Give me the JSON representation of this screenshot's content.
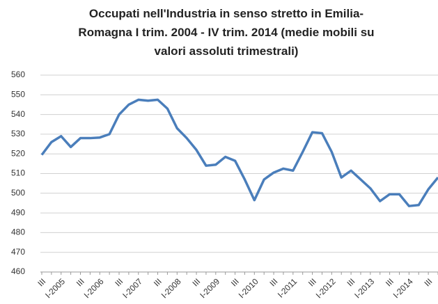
{
  "chart_data": {
    "type": "line",
    "title": "Occupati nell'Industria in senso stretto in Emilia-Romagna I trim. 2004 - IV trim. 2014 (medie mobili su valori assoluti trimestrali)",
    "categories": [
      "III",
      null,
      "I-2005",
      null,
      "III",
      null,
      "I-2006",
      null,
      "III",
      null,
      "I-2007",
      null,
      "III",
      null,
      "I-2008",
      null,
      "III",
      null,
      "I-2009",
      null,
      "III",
      null,
      "I-2010",
      null,
      "III",
      null,
      "I-2011",
      null,
      "III",
      null,
      "I-2012",
      null,
      "III",
      null,
      "I-2013",
      null,
      "III",
      null,
      "I-2014",
      null,
      "III",
      null
    ],
    "values": [
      519.5,
      526,
      529,
      523.5,
      528,
      528,
      528.3,
      530,
      540,
      545,
      547.5,
      547,
      547.5,
      543,
      533,
      528,
      522,
      514,
      514.5,
      518.5,
      516.5,
      507,
      496.5,
      507,
      510.5,
      512.5,
      511.5,
      521,
      531,
      530.5,
      521,
      508,
      511.5,
      507,
      502.5,
      496,
      499.5,
      499.5,
      493.5,
      494,
      502,
      508
    ],
    "color": "#4a7ebb",
    "ylim": [
      460,
      560
    ],
    "yticks": [
      460,
      470,
      480,
      490,
      500,
      510,
      520,
      530,
      540,
      550,
      560
    ],
    "grid": true
  }
}
